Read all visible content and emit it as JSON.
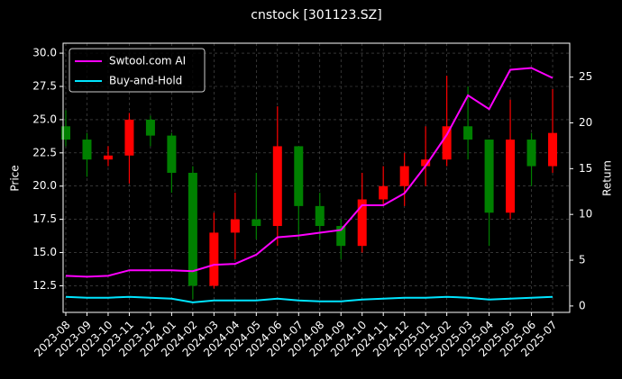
{
  "chart_data": {
    "type": "candlestick",
    "title": "cnstock [301123.SZ]",
    "ylabel": "Price",
    "y2label": "Return",
    "x": [
      "2023-08",
      "2023-09",
      "2023-10",
      "2023-11",
      "2023-12",
      "2024-01",
      "2024-02",
      "2024-03",
      "2024-04",
      "2024-05",
      "2024-06",
      "2024-07",
      "2024-08",
      "2024-09",
      "2024-10",
      "2024-11",
      "2024-12",
      "2025-01",
      "2025-02",
      "2025-03",
      "2025-04",
      "2025-05",
      "2025-06",
      "2025-07"
    ],
    "open": [
      24.5,
      23.5,
      22,
      22.3,
      25,
      23.8,
      21,
      12.5,
      16.5,
      17.5,
      17,
      23,
      18.5,
      17,
      15.5,
      19,
      20,
      21.5,
      22,
      24.5,
      23.5,
      18,
      23.5,
      21.5
    ],
    "high": [
      25.7,
      24,
      23,
      25.5,
      25.3,
      24,
      21.5,
      18,
      19.5,
      21,
      26,
      23,
      19.5,
      17.5,
      21,
      21.5,
      22.5,
      24.5,
      28.3,
      27.5,
      23.5,
      26.5,
      24,
      27.3
    ],
    "low": [
      23,
      20.7,
      21.5,
      20.2,
      23,
      19.5,
      11.5,
      12.3,
      14.5,
      16,
      15.5,
      16,
      16,
      14.5,
      15,
      18.5,
      18.5,
      20,
      21.5,
      22,
      15.5,
      17.5,
      20,
      21
    ],
    "close": [
      23.5,
      22,
      22.3,
      25,
      23.8,
      21,
      12.5,
      16.5,
      17.5,
      17,
      23,
      18.5,
      17,
      15.5,
      19,
      20,
      21.5,
      22,
      24.5,
      23.5,
      18,
      23.5,
      21.5,
      24
    ],
    "up_color": "#ff0000",
    "down_color": "#008000",
    "series": [
      {
        "name": "Swtool.com AI",
        "color": "#ff00ff",
        "type": "line",
        "axis": "y2",
        "values": [
          3.3,
          3.2,
          3.3,
          3.9,
          3.9,
          3.9,
          3.8,
          4.5,
          4.6,
          5.6,
          7.5,
          7.7,
          8.0,
          8.3,
          11.0,
          11.0,
          12.3,
          15.3,
          18.7,
          23.0,
          21.5,
          25.8,
          26.0,
          24.9
        ]
      },
      {
        "name": "Buy-and-Hold",
        "color": "#00e5ff",
        "type": "line",
        "axis": "y2",
        "values": [
          1.0,
          0.9,
          0.9,
          1.0,
          0.9,
          0.8,
          0.4,
          0.6,
          0.6,
          0.6,
          0.8,
          0.6,
          0.5,
          0.5,
          0.7,
          0.8,
          0.9,
          0.9,
          1.0,
          0.9,
          0.7,
          0.8,
          0.9,
          1.0
        ]
      }
    ],
    "ylim": [
      10.5,
      30.75
    ],
    "yticks": [
      12.5,
      {
        "value": 15,
        "label": "15.0"
      },
      17.5,
      {
        "value": 20,
        "label": "20.0"
      },
      22.5,
      {
        "value": 25,
        "label": "25.0"
      },
      27.5,
      {
        "value": 30,
        "label": "30.0"
      }
    ],
    "y2lim": [
      -0.7,
      28.7
    ],
    "y2ticks": [
      0,
      5,
      10,
      15,
      20,
      25
    ],
    "grid": true,
    "legend": "upper left"
  }
}
